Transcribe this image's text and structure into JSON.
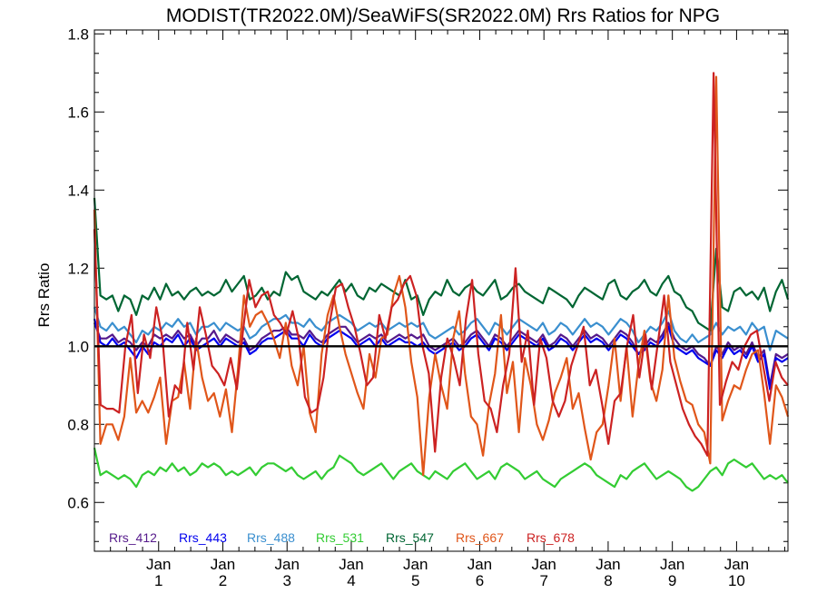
{
  "chart_data": {
    "type": "line",
    "title": "MODIST(TR2022.0M)/SeaWiFS(SR2022.0M)  Rrs Ratios for NPG",
    "xlabel": "",
    "ylabel": "Rrs Ratio",
    "ylim": [
      0.475,
      1.81
    ],
    "xlim": [
      0,
      10.8
    ],
    "yticks": [
      0.6,
      0.8,
      1.0,
      1.2,
      1.4,
      1.6,
      1.8
    ],
    "ytick_labels": [
      "0.6",
      "0.8",
      "1.0",
      "1.2",
      "1.4",
      "1.6",
      "1.8"
    ],
    "xticks": [
      {
        "x": 1,
        "top": "Jan",
        "bottom": "1"
      },
      {
        "x": 2,
        "top": "Jan",
        "bottom": "2"
      },
      {
        "x": 3,
        "top": "Jan",
        "bottom": "3"
      },
      {
        "x": 4,
        "top": "Jan",
        "bottom": "4"
      },
      {
        "x": 5,
        "top": "Jan",
        "bottom": "5"
      },
      {
        "x": 6,
        "top": "Jan",
        "bottom": "6"
      },
      {
        "x": 7,
        "top": "Jan",
        "bottom": "7"
      },
      {
        "x": 8,
        "top": "Jan",
        "bottom": "8"
      },
      {
        "x": 9,
        "top": "Jan",
        "bottom": "9"
      },
      {
        "x": 10,
        "top": "Jan",
        "bottom": "10"
      }
    ],
    "reference_line": 1.0,
    "legend_placement": "bottom",
    "series": [
      {
        "name": "Rrs_412",
        "color": "#551a8b",
        "y": [
          1.06,
          1.02,
          1.02,
          1.03,
          1.01,
          1.02,
          1.01,
          0.99,
          1.01,
          1.0,
          1.03,
          1.02,
          1.03,
          1.02,
          1.04,
          1.02,
          1.03,
          1.0,
          1.02,
          1.02,
          1.04,
          1.01,
          1.03,
          1.02,
          1.01,
          1.02,
          0.99,
          1.0,
          1.02,
          1.03,
          1.04,
          1.04,
          1.05,
          1.03,
          1.03,
          1.02,
          1.04,
          1.02,
          1.01,
          1.03,
          1.04,
          1.05,
          1.05,
          1.03,
          1.01,
          1.02,
          1.03,
          1.02,
          1.03,
          1.01,
          1.02,
          1.03,
          1.02,
          1.03,
          1.02,
          1.03,
          1.0,
          0.99,
          1.0,
          1.01,
          1.02,
          1.0,
          1.01,
          1.03,
          1.04,
          1.02,
          1.0,
          1.03,
          1.02,
          1.0,
          1.02,
          1.04,
          1.03,
          1.02,
          1.01,
          1.03,
          1.0,
          1.01,
          1.03,
          1.02,
          1.0,
          1.02,
          1.04,
          1.02,
          1.03,
          1.02,
          1.0,
          1.02,
          1.04,
          1.03,
          1.01,
          0.98,
          1.0,
          1.02,
          1.01,
          1.03,
          1.06,
          1.02,
          1.0,
          0.99,
          1.0,
          0.98,
          0.97,
          0.95,
          1.0,
          0.98,
          1.01,
          0.99,
          1.0,
          0.98,
          1.01,
          0.97,
          0.99,
          0.9,
          0.98,
          0.97,
          0.98
        ]
      },
      {
        "name": "Rrs_443",
        "color": "#0000ee",
        "y": [
          1.07,
          1.01,
          1.0,
          1.02,
          1.0,
          1.01,
          0.99,
          0.97,
          1.0,
          0.98,
          1.01,
          1.0,
          1.02,
          1.01,
          1.03,
          1.0,
          1.02,
          0.99,
          1.0,
          1.01,
          1.02,
          1.0,
          1.02,
          1.01,
          1.0,
          1.01,
          0.98,
          0.99,
          1.01,
          1.02,
          1.02,
          1.03,
          1.04,
          1.02,
          1.02,
          1.0,
          1.03,
          1.01,
          1.0,
          1.02,
          1.03,
          1.04,
          1.03,
          1.02,
          1.0,
          1.01,
          1.02,
          1.0,
          1.02,
          1.0,
          1.01,
          1.02,
          1.01,
          1.01,
          1.0,
          1.01,
          0.99,
          0.98,
          0.99,
          1.0,
          1.01,
          0.99,
          1.0,
          1.02,
          1.03,
          1.01,
          0.99,
          1.02,
          1.01,
          0.99,
          1.01,
          1.03,
          1.02,
          1.01,
          1.0,
          1.02,
          0.99,
          1.0,
          1.02,
          1.01,
          0.99,
          1.01,
          1.03,
          1.01,
          1.02,
          1.01,
          0.99,
          1.01,
          1.03,
          1.02,
          1.0,
          0.98,
          0.99,
          1.01,
          1.0,
          1.02,
          1.05,
          1.0,
          0.99,
          0.98,
          0.99,
          0.97,
          0.96,
          0.95,
          0.99,
          0.97,
          1.0,
          0.98,
          0.99,
          0.97,
          1.0,
          0.96,
          0.98,
          0.89,
          0.97,
          0.96,
          0.97
        ]
      },
      {
        "name": "Rrs_488",
        "color": "#3a8fcf",
        "y": [
          1.1,
          1.05,
          1.04,
          1.06,
          1.04,
          1.05,
          1.03,
          1.01,
          1.04,
          1.03,
          1.05,
          1.04,
          1.06,
          1.05,
          1.07,
          1.05,
          1.06,
          1.03,
          1.05,
          1.05,
          1.06,
          1.04,
          1.06,
          1.05,
          1.04,
          1.05,
          1.02,
          1.03,
          1.05,
          1.06,
          1.07,
          1.07,
          1.08,
          1.06,
          1.06,
          1.05,
          1.07,
          1.05,
          1.04,
          1.06,
          1.07,
          1.08,
          1.07,
          1.06,
          1.04,
          1.05,
          1.06,
          1.05,
          1.06,
          1.04,
          1.05,
          1.06,
          1.05,
          1.06,
          1.05,
          1.06,
          1.03,
          1.02,
          1.03,
          1.04,
          1.05,
          1.03,
          1.04,
          1.06,
          1.07,
          1.05,
          1.03,
          1.06,
          1.05,
          1.03,
          1.05,
          1.07,
          1.06,
          1.05,
          1.04,
          1.06,
          1.03,
          1.04,
          1.06,
          1.05,
          1.03,
          1.05,
          1.07,
          1.05,
          1.06,
          1.05,
          1.03,
          1.05,
          1.07,
          1.06,
          1.04,
          1.01,
          1.03,
          1.05,
          1.04,
          1.06,
          1.09,
          1.04,
          1.02,
          1.01,
          1.03,
          1.01,
          1.02,
          1.03,
          1.06,
          1.03,
          1.05,
          1.04,
          1.05,
          1.03,
          1.06,
          1.04,
          1.05,
          0.99,
          1.04,
          1.03,
          1.02
        ]
      },
      {
        "name": "Rrs_531",
        "color": "#33cc33",
        "y": [
          0.74,
          0.67,
          0.68,
          0.67,
          0.66,
          0.67,
          0.66,
          0.64,
          0.67,
          0.68,
          0.67,
          0.69,
          0.68,
          0.7,
          0.68,
          0.69,
          0.67,
          0.68,
          0.7,
          0.69,
          0.7,
          0.69,
          0.67,
          0.68,
          0.67,
          0.68,
          0.69,
          0.67,
          0.69,
          0.7,
          0.7,
          0.69,
          0.68,
          0.69,
          0.67,
          0.66,
          0.67,
          0.68,
          0.66,
          0.68,
          0.69,
          0.72,
          0.71,
          0.7,
          0.68,
          0.67,
          0.68,
          0.69,
          0.7,
          0.68,
          0.66,
          0.68,
          0.69,
          0.7,
          0.68,
          0.67,
          0.66,
          0.68,
          0.67,
          0.66,
          0.68,
          0.69,
          0.7,
          0.68,
          0.66,
          0.67,
          0.68,
          0.66,
          0.69,
          0.7,
          0.69,
          0.68,
          0.66,
          0.67,
          0.68,
          0.66,
          0.65,
          0.64,
          0.66,
          0.67,
          0.68,
          0.69,
          0.7,
          0.69,
          0.67,
          0.66,
          0.65,
          0.64,
          0.67,
          0.66,
          0.68,
          0.69,
          0.7,
          0.68,
          0.66,
          0.67,
          0.68,
          0.67,
          0.66,
          0.64,
          0.63,
          0.64,
          0.66,
          0.68,
          0.69,
          0.67,
          0.7,
          0.71,
          0.7,
          0.69,
          0.7,
          0.68,
          0.66,
          0.67,
          0.66,
          0.67,
          0.65
        ]
      },
      {
        "name": "Rrs_547",
        "color": "#006633",
        "y": [
          1.38,
          1.13,
          1.12,
          1.13,
          1.09,
          1.13,
          1.12,
          1.08,
          1.13,
          1.12,
          1.15,
          1.12,
          1.16,
          1.13,
          1.14,
          1.12,
          1.14,
          1.15,
          1.13,
          1.14,
          1.13,
          1.14,
          1.17,
          1.14,
          1.16,
          1.18,
          1.12,
          1.13,
          1.15,
          1.12,
          1.14,
          1.13,
          1.19,
          1.17,
          1.18,
          1.14,
          1.13,
          1.12,
          1.14,
          1.13,
          1.15,
          1.17,
          1.14,
          1.16,
          1.13,
          1.12,
          1.15,
          1.14,
          1.16,
          1.15,
          1.14,
          1.13,
          1.17,
          1.12,
          1.13,
          1.08,
          1.12,
          1.14,
          1.13,
          1.17,
          1.14,
          1.13,
          1.15,
          1.16,
          1.14,
          1.13,
          1.15,
          1.17,
          1.12,
          1.13,
          1.15,
          1.16,
          1.14,
          1.13,
          1.12,
          1.11,
          1.15,
          1.14,
          1.13,
          1.12,
          1.1,
          1.13,
          1.15,
          1.14,
          1.13,
          1.12,
          1.16,
          1.17,
          1.13,
          1.12,
          1.14,
          1.15,
          1.17,
          1.14,
          1.13,
          1.16,
          1.18,
          1.14,
          1.13,
          1.1,
          1.09,
          1.06,
          1.05,
          1.04,
          1.25,
          1.1,
          1.09,
          1.14,
          1.15,
          1.13,
          1.14,
          1.12,
          1.15,
          1.09,
          1.14,
          1.17,
          1.12
        ]
      },
      {
        "name": "Rrs_667",
        "color": "#e0561a",
        "y": [
          1.35,
          0.75,
          0.8,
          0.8,
          0.76,
          0.82,
          0.97,
          0.83,
          0.86,
          0.83,
          0.87,
          0.92,
          0.75,
          0.86,
          0.87,
          0.96,
          0.84,
          1.02,
          0.92,
          0.86,
          0.88,
          0.82,
          0.89,
          0.78,
          0.94,
          1.13,
          1.05,
          1.08,
          1.09,
          1.06,
          1.02,
          0.97,
          1.06,
          0.95,
          0.9,
          1.0,
          0.83,
          0.78,
          0.98,
          1.08,
          1.13,
          1.05,
          0.98,
          0.93,
          0.88,
          0.84,
          0.98,
          0.92,
          1.02,
          1.03,
          1.13,
          1.18,
          1.1,
          0.96,
          0.87,
          0.67,
          0.87,
          0.98,
          0.9,
          0.84,
          1.02,
          1.09,
          0.93,
          0.82,
          0.8,
          0.72,
          0.85,
          0.93,
          1.08,
          0.88,
          0.96,
          0.78,
          0.97,
          0.9,
          0.8,
          0.76,
          0.81,
          0.88,
          0.92,
          0.97,
          0.84,
          0.88,
          0.79,
          0.71,
          0.78,
          0.8,
          0.9,
          1.02,
          0.86,
          1.0,
          0.82,
          0.95,
          1.04,
          0.91,
          0.86,
          0.94,
          1.13,
          0.97,
          0.91,
          0.86,
          0.85,
          0.8,
          0.78,
          0.7,
          1.69,
          0.81,
          0.86,
          0.9,
          0.89,
          0.94,
          0.98,
          0.99,
          0.88,
          0.75,
          0.9,
          0.87,
          0.82
        ]
      },
      {
        "name": "Rrs_678",
        "color": "#cc2222",
        "y": [
          1.3,
          0.85,
          0.84,
          0.84,
          0.83,
          1.0,
          1.08,
          0.88,
          1.03,
          0.97,
          1.1,
          1.02,
          0.82,
          0.9,
          0.88,
          1.06,
          0.94,
          1.1,
          1.03,
          0.95,
          0.93,
          0.9,
          0.97,
          0.89,
          1.04,
          1.17,
          1.1,
          1.13,
          1.14,
          1.08,
          1.06,
          1.03,
          1.09,
          1.02,
          0.87,
          0.83,
          0.84,
          0.92,
          1.06,
          1.15,
          1.16,
          1.1,
          1.05,
          0.98,
          0.9,
          0.92,
          1.08,
          1.02,
          1.1,
          1.12,
          1.16,
          1.18,
          1.13,
          1.0,
          0.93,
          0.73,
          0.92,
          1.02,
          0.97,
          0.9,
          1.07,
          1.17,
          0.98,
          0.86,
          0.84,
          0.78,
          0.9,
          0.98,
          1.2,
          0.96,
          1.04,
          0.85,
          1.02,
          0.97,
          0.86,
          0.82,
          0.86,
          0.95,
          1.0,
          1.05,
          0.9,
          0.94,
          0.85,
          0.75,
          0.86,
          0.88,
          1.0,
          1.08,
          0.92,
          1.03,
          0.89,
          1.01,
          1.13,
          0.96,
          0.9,
          0.84,
          0.8,
          0.77,
          0.75,
          0.72,
          1.7,
          0.85,
          0.91,
          0.96,
          0.94,
          1.0,
          1.03,
          1.04,
          0.95,
          0.86,
          0.96,
          0.92,
          0.9
        ]
      }
    ]
  }
}
